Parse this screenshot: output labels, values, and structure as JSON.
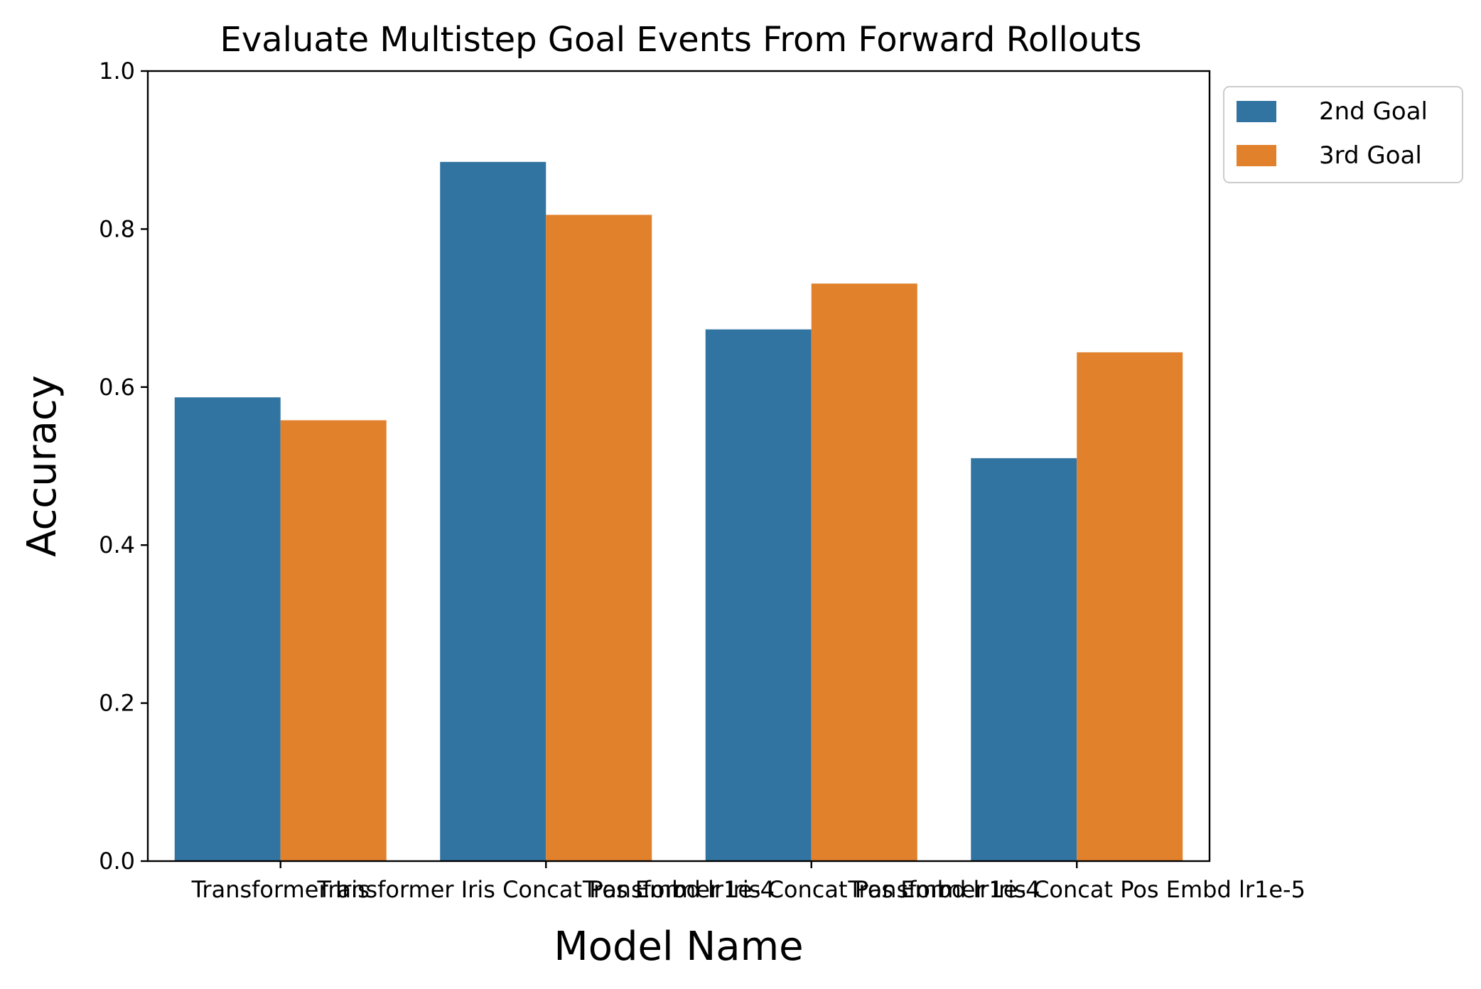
{
  "chart_data": {
    "type": "bar",
    "title": "Evaluate Multistep Goal Events From Forward Rollouts",
    "xlabel": "Model Name",
    "ylabel": "Accuracy",
    "ylim": [
      0,
      1.0
    ],
    "yticks": [
      "0.0",
      "0.2",
      "0.4",
      "0.6",
      "0.8",
      "1.0"
    ],
    "categories": [
      "Transformer Iris",
      "Transformer Iris Concat Pos Embd lr1e-4",
      "Transformer Iris Concat Pos Embd lr1e-4",
      "Transformer Iris Concat Pos Embd lr1e-5"
    ],
    "series": [
      {
        "name": "2nd Goal",
        "color": "#3274a1",
        "values": [
          0.587,
          0.885,
          0.673,
          0.51
        ]
      },
      {
        "name": "3rd Goal",
        "color": "#e1812c",
        "values": [
          0.558,
          0.818,
          0.731,
          0.644
        ]
      }
    ],
    "grid": false,
    "legend_position": "outside-top-right"
  }
}
